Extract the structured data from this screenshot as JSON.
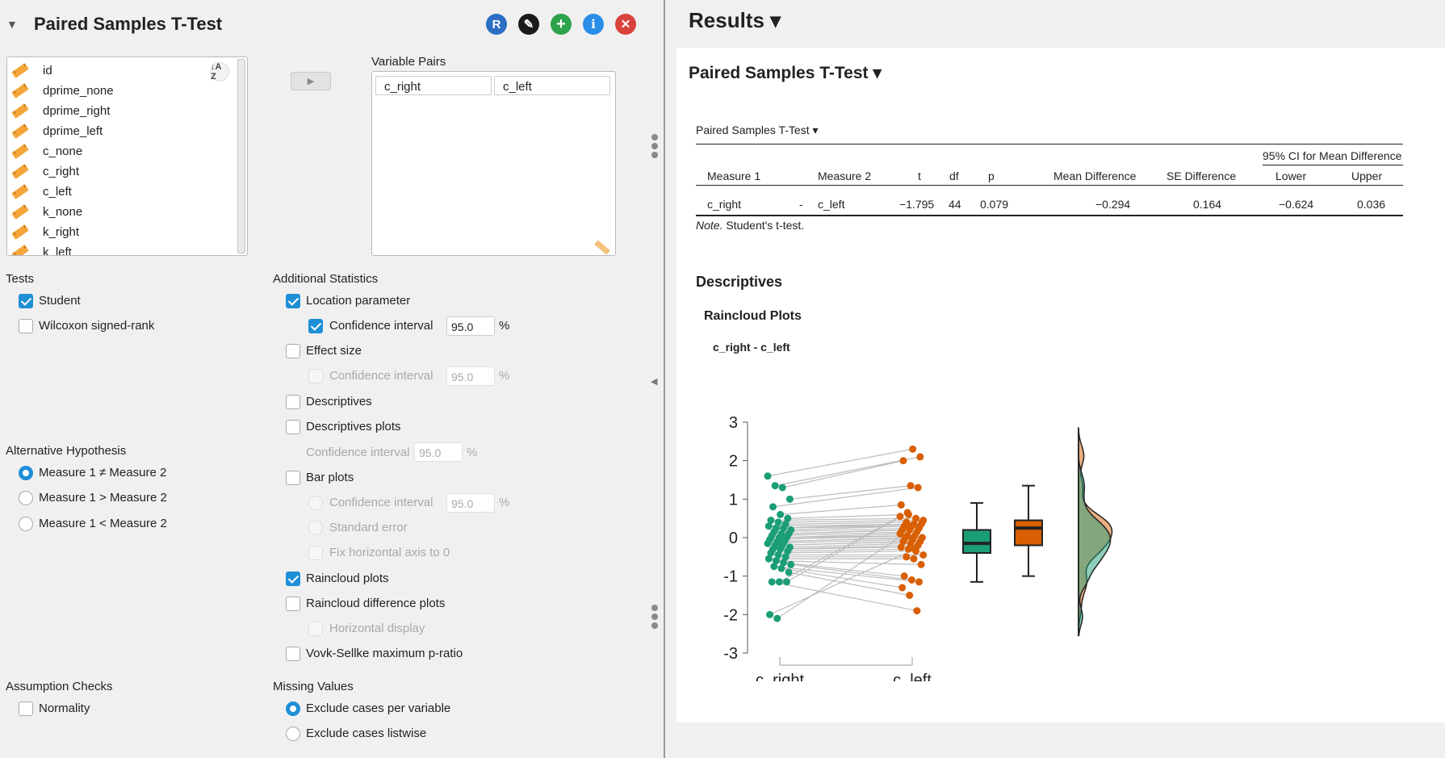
{
  "left": {
    "title": "Paired Samples T-Test",
    "header_buttons": [
      {
        "label": "R",
        "color": "#2b6ec4",
        "icon": "r-syntax-icon"
      },
      {
        "label": "✎",
        "color": "#1a1a1a",
        "icon": "edit-icon"
      },
      {
        "label": "+",
        "color": "#2ca24a",
        "icon": "add-icon"
      },
      {
        "label": "i",
        "color": "#2a8ee8",
        "icon": "info-icon"
      },
      {
        "label": "✕",
        "color": "#d9433c",
        "icon": "close-icon"
      }
    ],
    "variables": [
      "id",
      "dprime_none",
      "dprime_right",
      "dprime_left",
      "c_none",
      "c_right",
      "c_left",
      "k_none",
      "k_right",
      "k_left"
    ],
    "sort_label": "↓A Z",
    "variable_pairs_label": "Variable Pairs",
    "pair": {
      "first": "c_right",
      "second": "c_left"
    },
    "tests": {
      "heading": "Tests",
      "student": {
        "label": "Student",
        "checked": true
      },
      "wilcoxon": {
        "label": "Wilcoxon signed-rank",
        "checked": false
      }
    },
    "alt_hypothesis": {
      "heading": "Alternative Hypothesis",
      "options": [
        "Measure 1 ≠ Measure 2",
        "Measure 1 > Measure 2",
        "Measure 1 < Measure 2"
      ],
      "selected": 0
    },
    "assumption": {
      "heading": "Assumption Checks",
      "normality": "Normality"
    },
    "additional": {
      "heading": "Additional Statistics",
      "location": "Location parameter",
      "ci_label": "Confidence interval",
      "ci_value": "95.0",
      "pct": "%",
      "effect_size": "Effect size",
      "descriptives": "Descriptives",
      "descriptives_plots": "Descriptives plots",
      "bar_plots": "Bar plots",
      "standard_error": "Standard error",
      "fix_axis": "Fix horizontal axis to 0",
      "raincloud": "Raincloud plots",
      "raincloud_diff": "Raincloud difference plots",
      "horizontal": "Horizontal display",
      "vovk": "Vovk-Sellke maximum p-ratio"
    },
    "missing": {
      "heading": "Missing Values",
      "per_variable": "Exclude cases per variable",
      "listwise": "Exclude cases listwise"
    }
  },
  "right": {
    "results_title": "Results ▾",
    "analysis_title": "Paired Samples T-Test ▾",
    "table_title": "Paired Samples T-Test ▾",
    "ci_header": "95% CI for Mean Difference",
    "columns": {
      "m1": "Measure 1",
      "m2": "Measure 2",
      "t": "t",
      "df": "df",
      "p": "p",
      "md": "Mean Difference",
      "se": "SE Difference",
      "lower": "Lower",
      "upper": "Upper"
    },
    "row": {
      "m1": "c_right",
      "sep": "-",
      "m2": "c_left",
      "t": "−1.795",
      "df": "44",
      "p": "0.079",
      "md": "−0.294",
      "se": "0.164",
      "lower": "−0.624",
      "upper": "0.036"
    },
    "note_label": "Note.",
    "note_text": " Student's t-test.",
    "descriptives_title": "Descriptives",
    "raincloud_title": "Raincloud Plots",
    "plot_title": "c_right - c_left"
  },
  "chart_data": {
    "type": "scatter",
    "title": "c_right - c_left",
    "categories": [
      "c_right",
      "c_left"
    ],
    "ylim": [
      -3,
      3
    ],
    "yticks": [
      3,
      2,
      1,
      0,
      -1,
      -2,
      -3
    ],
    "colors": {
      "c_right": "#1b9e77",
      "c_left": "#d95f02"
    },
    "series": [
      {
        "name": "c_right",
        "values": [
          1.6,
          1.35,
          1.3,
          1.0,
          0.8,
          0.6,
          0.5,
          0.45,
          0.4,
          0.35,
          0.3,
          0.25,
          0.25,
          0.2,
          0.15,
          0.1,
          0.1,
          0.05,
          0.0,
          0.0,
          -0.05,
          -0.1,
          -0.1,
          -0.15,
          -0.2,
          -0.2,
          -0.25,
          -0.3,
          -0.3,
          -0.35,
          -0.4,
          -0.45,
          -0.5,
          -0.55,
          -0.6,
          -0.65,
          -0.7,
          -0.75,
          -0.8,
          -0.9,
          -1.15,
          -1.15,
          -1.15,
          -2.0,
          -2.1
        ]
      },
      {
        "name": "c_left",
        "values": [
          2.3,
          2.1,
          2.0,
          1.35,
          1.3,
          0.85,
          0.6,
          0.5,
          0.45,
          0.4,
          0.35,
          0.35,
          0.3,
          0.3,
          0.25,
          0.2,
          0.2,
          0.15,
          0.1,
          0.05,
          0.05,
          0.0,
          0.0,
          -0.05,
          -0.1,
          -0.1,
          -0.15,
          -0.2,
          -0.25,
          -0.3,
          -0.35,
          -0.45,
          -0.5,
          -0.55,
          -0.7,
          -1.0,
          -1.1,
          -1.15,
          -1.3,
          -1.5,
          -1.9,
          0.55,
          0.65,
          -0.3,
          0.4
        ]
      }
    ],
    "boxplots": [
      {
        "name": "c_right",
        "min": -1.15,
        "q1": -0.4,
        "median": -0.15,
        "q3": 0.2,
        "max": 0.9
      },
      {
        "name": "c_left",
        "min": -1.0,
        "q1": -0.2,
        "median": 0.25,
        "q3": 0.45,
        "max": 1.35
      }
    ]
  }
}
